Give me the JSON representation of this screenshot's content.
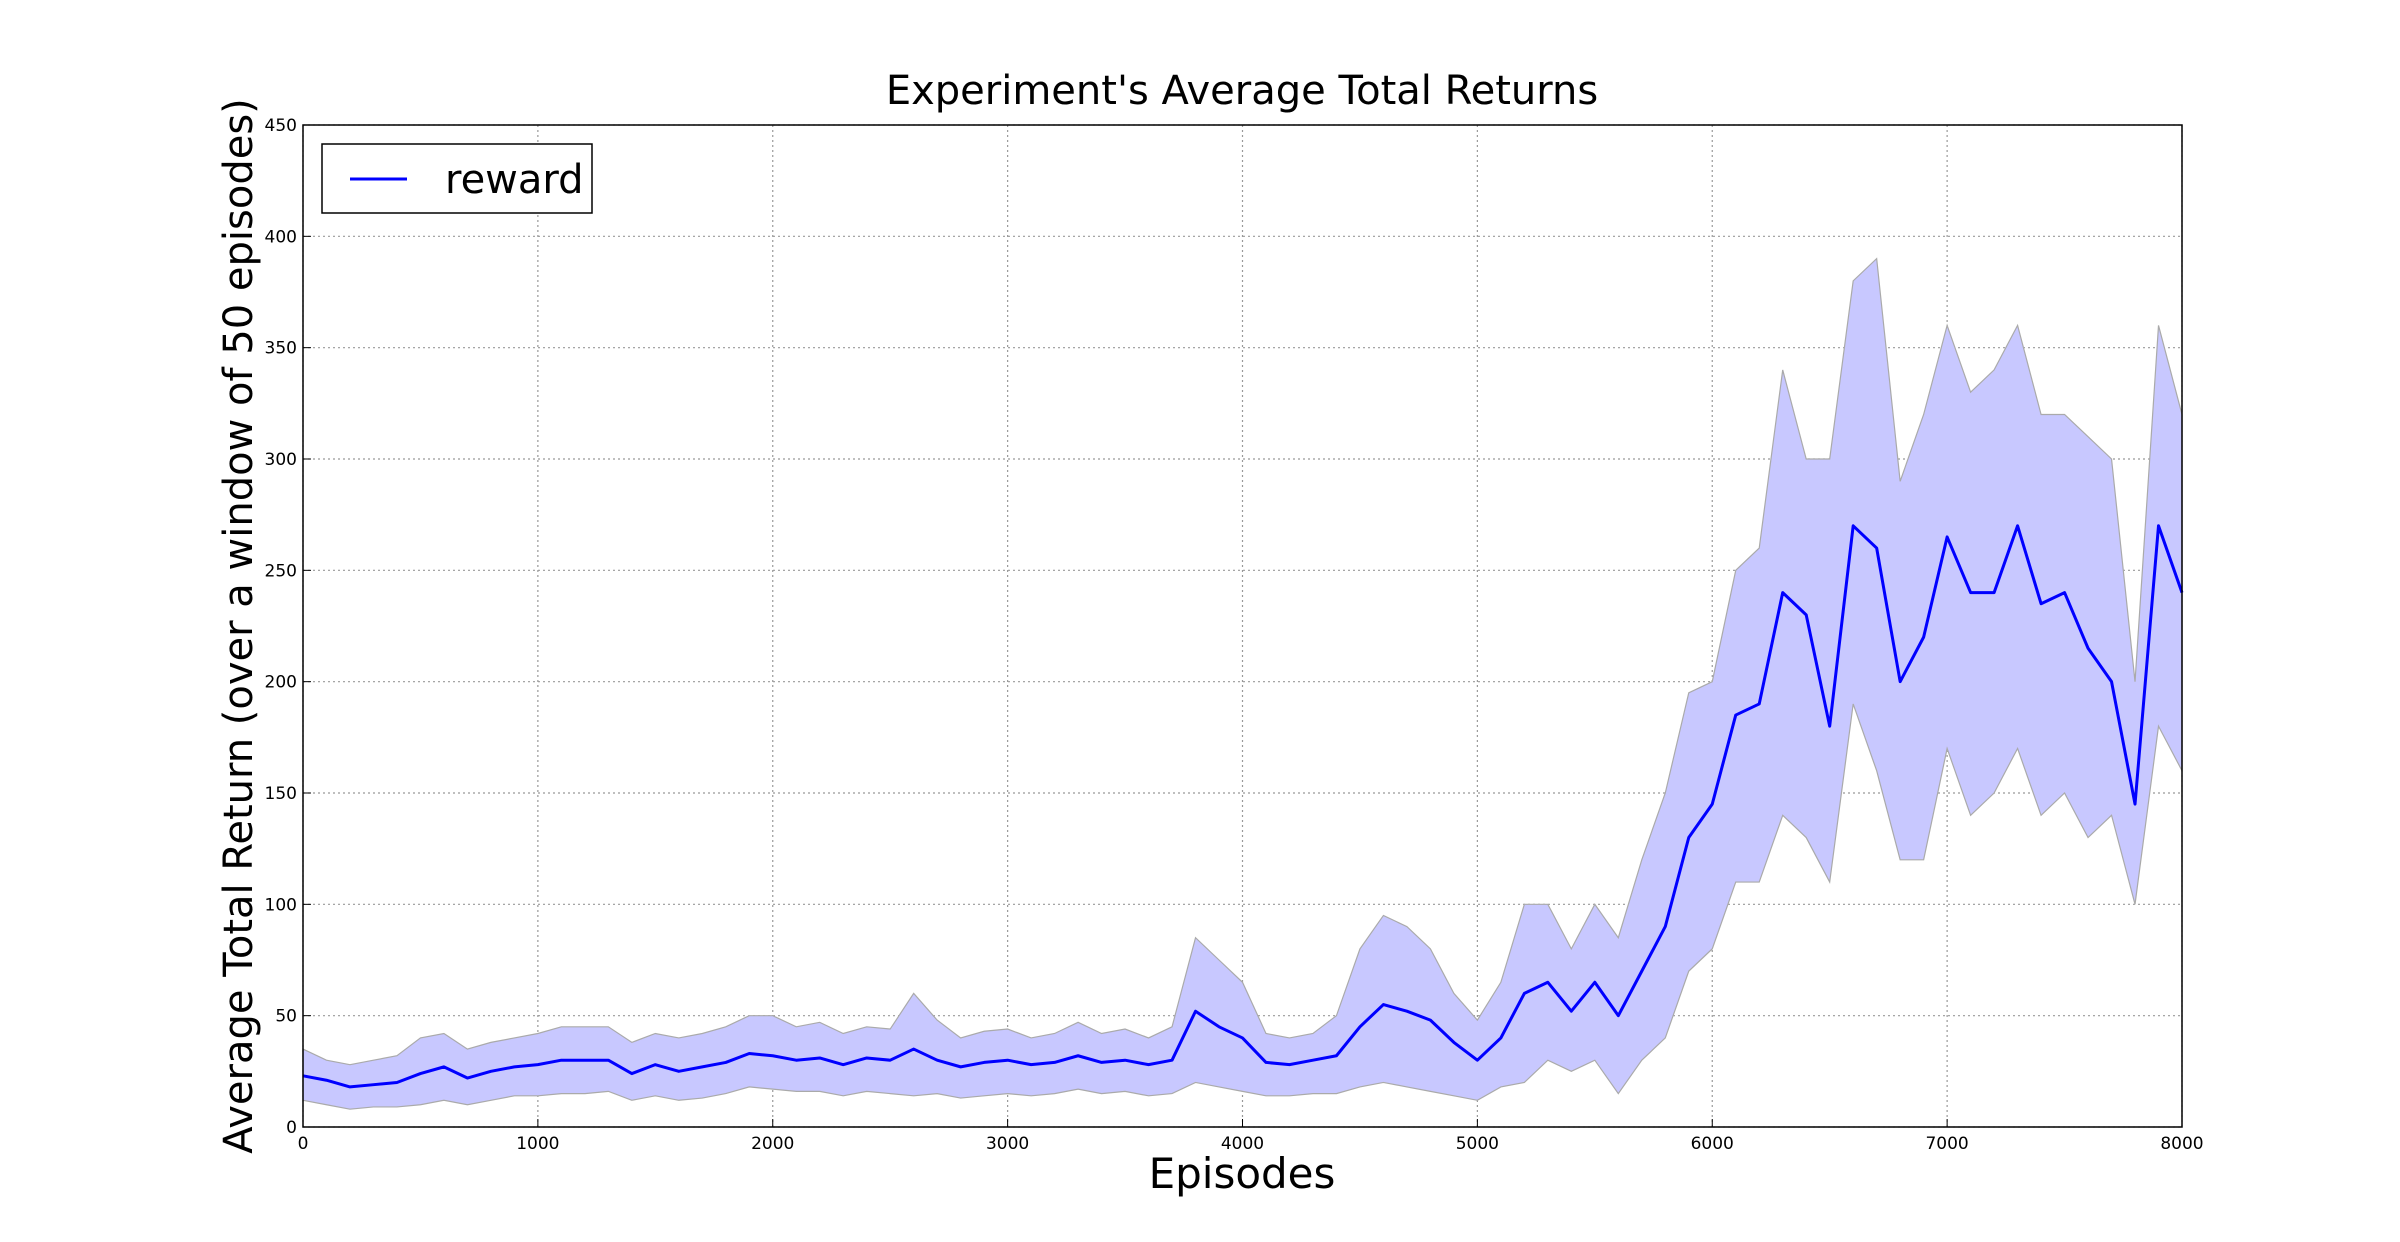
{
  "chart_data": {
    "type": "line",
    "title": "Experiment's Average Total Returns",
    "x_label": "Episodes",
    "y_label": "Average Total Return (over a window of 50 episodes)",
    "x": [
      0,
      100,
      200,
      300,
      400,
      500,
      600,
      700,
      800,
      900,
      1000,
      1100,
      1200,
      1300,
      1400,
      1500,
      1600,
      1700,
      1800,
      1900,
      2000,
      2100,
      2200,
      2300,
      2400,
      2500,
      2600,
      2700,
      2800,
      2900,
      3000,
      3100,
      3200,
      3300,
      3400,
      3500,
      3600,
      3700,
      3800,
      3900,
      4000,
      4100,
      4200,
      4300,
      4400,
      4500,
      4600,
      4700,
      4800,
      4900,
      5000,
      5100,
      5200,
      5300,
      5400,
      5500,
      5600,
      5700,
      5800,
      5900,
      6000,
      6100,
      6200,
      6300,
      6400,
      6500,
      6600,
      6700,
      6800,
      6900,
      7000,
      7100,
      7200,
      7300,
      7400,
      7500,
      7600,
      7700,
      7800,
      7900,
      8000
    ],
    "series": [
      {
        "name": "reward",
        "color": "#0000ff",
        "values": [
          23,
          21,
          18,
          19,
          20,
          24,
          27,
          22,
          25,
          27,
          28,
          30,
          30,
          30,
          24,
          28,
          25,
          27,
          29,
          33,
          32,
          30,
          31,
          28,
          31,
          30,
          35,
          30,
          27,
          29,
          30,
          28,
          29,
          32,
          29,
          30,
          28,
          30,
          52,
          45,
          40,
          29,
          28,
          30,
          32,
          45,
          55,
          52,
          48,
          38,
          30,
          40,
          60,
          65,
          52,
          65,
          50,
          70,
          90,
          130,
          145,
          185,
          190,
          240,
          230,
          180,
          270,
          260,
          200,
          220,
          265,
          240,
          240,
          270,
          235,
          240,
          215,
          200,
          145,
          270,
          240
        ],
        "band": {
          "color": "#c8c8ff",
          "upper": [
            35,
            30,
            28,
            30,
            32,
            40,
            42,
            35,
            38,
            40,
            42,
            45,
            45,
            45,
            38,
            42,
            40,
            42,
            45,
            50,
            50,
            45,
            47,
            42,
            45,
            44,
            60,
            48,
            40,
            43,
            44,
            40,
            42,
            47,
            42,
            44,
            40,
            45,
            85,
            75,
            65,
            42,
            40,
            42,
            50,
            80,
            95,
            90,
            80,
            60,
            48,
            65,
            100,
            100,
            80,
            100,
            85,
            120,
            150,
            195,
            200,
            250,
            260,
            340,
            300,
            300,
            380,
            390,
            290,
            320,
            360,
            330,
            340,
            360,
            320,
            320,
            310,
            300,
            200,
            360,
            320
          ],
          "lower": [
            12,
            10,
            8,
            9,
            9,
            10,
            12,
            10,
            12,
            14,
            14,
            15,
            15,
            16,
            12,
            14,
            12,
            13,
            15,
            18,
            17,
            16,
            16,
            14,
            16,
            15,
            14,
            15,
            13,
            14,
            15,
            14,
            15,
            17,
            15,
            16,
            14,
            15,
            20,
            18,
            16,
            14,
            14,
            15,
            15,
            18,
            20,
            18,
            16,
            14,
            12,
            18,
            20,
            30,
            25,
            30,
            15,
            30,
            40,
            70,
            80,
            110,
            110,
            140,
            130,
            110,
            190,
            160,
            120,
            120,
            170,
            140,
            150,
            170,
            140,
            150,
            130,
            140,
            100,
            180,
            160
          ]
        }
      }
    ],
    "xlim": [
      0,
      8000
    ],
    "xticks": [
      0,
      1000,
      2000,
      3000,
      4000,
      5000,
      6000,
      7000,
      8000
    ],
    "ylim": [
      0,
      450
    ],
    "yticks": [
      0,
      50,
      100,
      150,
      200,
      250,
      300,
      350,
      400,
      450
    ],
    "grid": true,
    "legend": "upper left"
  }
}
